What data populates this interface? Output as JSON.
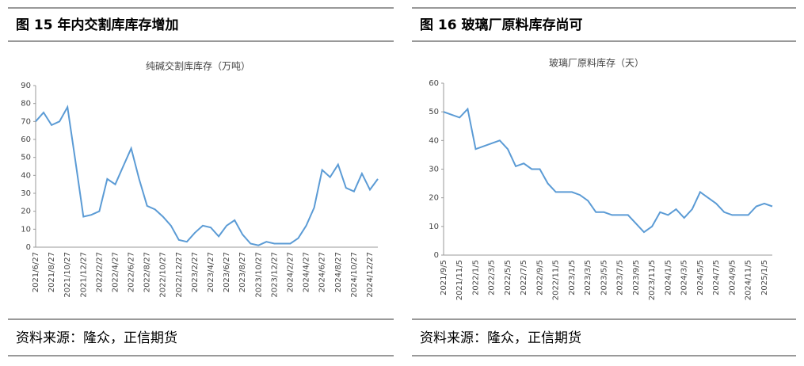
{
  "chart_data": [
    {
      "type": "line",
      "figure_title": "图 15  年内交割库库存增加",
      "title": "纯碱交割库库存（万吨）",
      "source": "资料来源：隆众，正信期货",
      "categories": [
        "2021/6/27",
        null,
        "2021/8/27",
        null,
        "2021/10/27",
        null,
        "2021/12/27",
        null,
        "2022/2/27",
        null,
        "2022/4/27",
        null,
        "2022/6/27",
        null,
        "2022/8/27",
        null,
        "2022/10/27",
        null,
        "2022/12/27",
        null,
        "2023/2/27",
        null,
        "2023/4/27",
        null,
        "2023/6/27",
        null,
        "2023/8/27",
        null,
        "2023/10/27",
        null,
        "2023/12/27",
        null,
        "2024/2/27",
        null,
        "2024/4/27",
        null,
        "2024/6/27",
        null,
        "2024/8/27",
        null,
        "2024/10/27",
        null,
        "2024/12/27",
        null
      ],
      "series": [
        {
          "name": "纯碱交割库库存",
          "color": "#5b9bd5",
          "values": [
            70,
            75,
            68,
            70,
            78,
            48,
            17,
            18,
            20,
            38,
            35,
            45,
            55,
            38,
            23,
            21,
            17,
            12,
            4,
            3,
            8,
            12,
            11,
            6,
            12,
            15,
            7,
            2,
            1,
            3,
            2,
            2,
            2,
            5,
            12,
            22,
            43,
            39,
            46,
            33,
            31,
            41,
            32,
            38
          ]
        }
      ],
      "ylim": [
        0,
        90
      ],
      "yticks": [
        0,
        10,
        20,
        30,
        40,
        50,
        60,
        70,
        80,
        90
      ]
    },
    {
      "type": "line",
      "figure_title": "图 16  玻璃厂原料库存尚可",
      "title": "玻璃厂原料库存（天）",
      "source": "资料来源：隆众，正信期货",
      "categories": [
        "2021/9/5",
        null,
        "2021/11/5",
        null,
        "2022/1/5",
        null,
        "2022/3/5",
        null,
        "2022/5/5",
        null,
        "2022/7/5",
        null,
        "2022/9/5",
        null,
        "2022/11/5",
        null,
        "2023/1/5",
        null,
        "2023/3/5",
        null,
        "2023/5/5",
        null,
        "2023/7/5",
        null,
        "2023/9/5",
        null,
        "2023/11/5",
        null,
        "2024/1/5",
        null,
        "2024/3/5",
        null,
        "2024/5/5",
        null,
        "2024/7/5",
        null,
        "2024/9/5",
        null,
        "2024/11/5",
        null,
        "2025/1/5",
        null
      ],
      "series": [
        {
          "name": "玻璃厂原料库存",
          "color": "#5b9bd5",
          "values": [
            50,
            49,
            48,
            51,
            37,
            38,
            39,
            40,
            37,
            31,
            32,
            30,
            30,
            25,
            22,
            22,
            22,
            21,
            19,
            15,
            15,
            14,
            14,
            14,
            11,
            8,
            10,
            15,
            14,
            16,
            13,
            16,
            22,
            20,
            18,
            15,
            14,
            14,
            14,
            17,
            18,
            17
          ]
        }
      ],
      "ylim": [
        0,
        60
      ],
      "yticks": [
        0,
        10,
        20,
        30,
        40,
        50,
        60
      ]
    }
  ]
}
